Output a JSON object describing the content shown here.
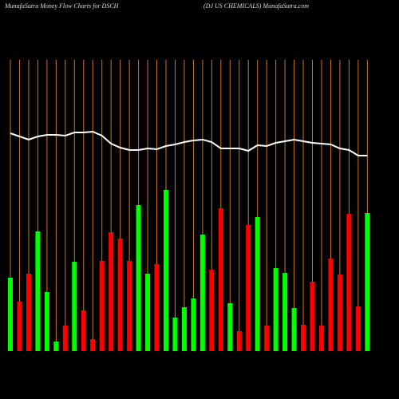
{
  "chart_data": {
    "type": "bar",
    "title": "MunafaSutra  Money Flow  Charts for DSCH",
    "subtitle": "(DJ US CHEMICALS) MunafaSutra.com",
    "grid": true,
    "grid_color": "#c8782a",
    "line_color": "#ffffff",
    "values": [
      92,
      62,
      97,
      150,
      74,
      12,
      32,
      112,
      51,
      15,
      113,
      149,
      141,
      113,
      183,
      97,
      109,
      202,
      42,
      55,
      66,
      146,
      102,
      179,
      60,
      25,
      158,
      168,
      32,
      104,
      98,
      54,
      33,
      87,
      32,
      116,
      96,
      172,
      56,
      173
    ],
    "bar_colors": [
      "#00ff00",
      "#ff0000",
      "#ff0000",
      "#00ff00",
      "#00ff00",
      "#00ff00",
      "#ff0000",
      "#00ff00",
      "#ff0000",
      "#ff0000",
      "#ff0000",
      "#ff0000",
      "#ff0000",
      "#ff0000",
      "#00ff00",
      "#00ff00",
      "#ff0000",
      "#00ff00",
      "#00ff00",
      "#00ff00",
      "#00ff00",
      "#00ff00",
      "#ff0000",
      "#ff0000",
      "#00ff00",
      "#ff0000",
      "#ff0000",
      "#00ff00",
      "#ff0000",
      "#00ff00",
      "#00ff00",
      "#00ff00",
      "#ff0000",
      "#ff0000",
      "#ff0000",
      "#ff0000",
      "#ff0000",
      "#ff0000",
      "#ff0000",
      "#00ff00"
    ],
    "line_values": [
      273,
      269,
      265,
      269,
      271,
      271,
      270,
      274,
      274,
      275,
      270,
      260,
      255,
      252,
      252,
      254,
      253,
      257,
      259,
      262,
      264,
      265,
      262,
      254,
      254,
      254,
      251,
      258,
      257,
      261,
      263,
      265,
      263,
      261,
      260,
      259,
      254,
      252,
      245,
      245
    ]
  }
}
